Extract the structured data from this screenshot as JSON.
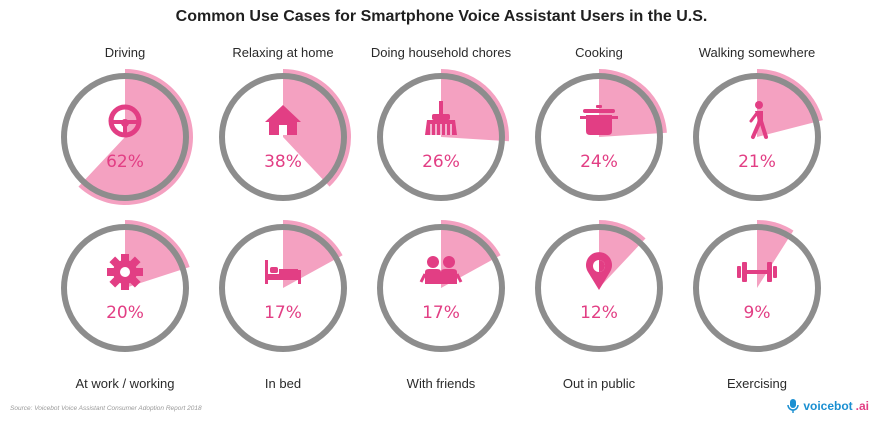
{
  "title": "Common Use Cases for Smartphone Voice Assistant Users in the U.S.",
  "source": "Source: Voicebot Voice Assistant Consumer Adoption Report 2018",
  "brand": {
    "name": "voicebot",
    "suffix": ".ai"
  },
  "colors": {
    "accent": "#e23e84",
    "fill": "#f4a1c1",
    "ring": "#8d8d8d"
  },
  "chart_data": {
    "type": "pie",
    "title": "Common Use Cases for Smartphone Voice Assistant Users in the U.S.",
    "items": [
      {
        "label": "Driving",
        "value": 62,
        "display": "62%",
        "icon": "steering-wheel-icon"
      },
      {
        "label": "Relaxing at home",
        "value": 38,
        "display": "38%",
        "icon": "house-icon"
      },
      {
        "label": "Doing household chores",
        "value": 26,
        "display": "26%",
        "icon": "broom-icon"
      },
      {
        "label": "Cooking",
        "value": 24,
        "display": "24%",
        "icon": "cooking-pot-icon"
      },
      {
        "label": "Walking somewhere",
        "value": 21,
        "display": "21%",
        "icon": "walking-person-icon"
      },
      {
        "label": "At work / working",
        "value": 20,
        "display": "20%",
        "icon": "gear-icon"
      },
      {
        "label": "In bed",
        "value": 17,
        "display": "17%",
        "icon": "bed-icon"
      },
      {
        "label": "With friends",
        "value": 17,
        "display": "17%",
        "icon": "friends-icon"
      },
      {
        "label": "Out in public",
        "value": 12,
        "display": "12%",
        "icon": "map-pin-icon"
      },
      {
        "label": "Exercising",
        "value": 9,
        "display": "9%",
        "icon": "dumbbell-icon"
      }
    ]
  }
}
